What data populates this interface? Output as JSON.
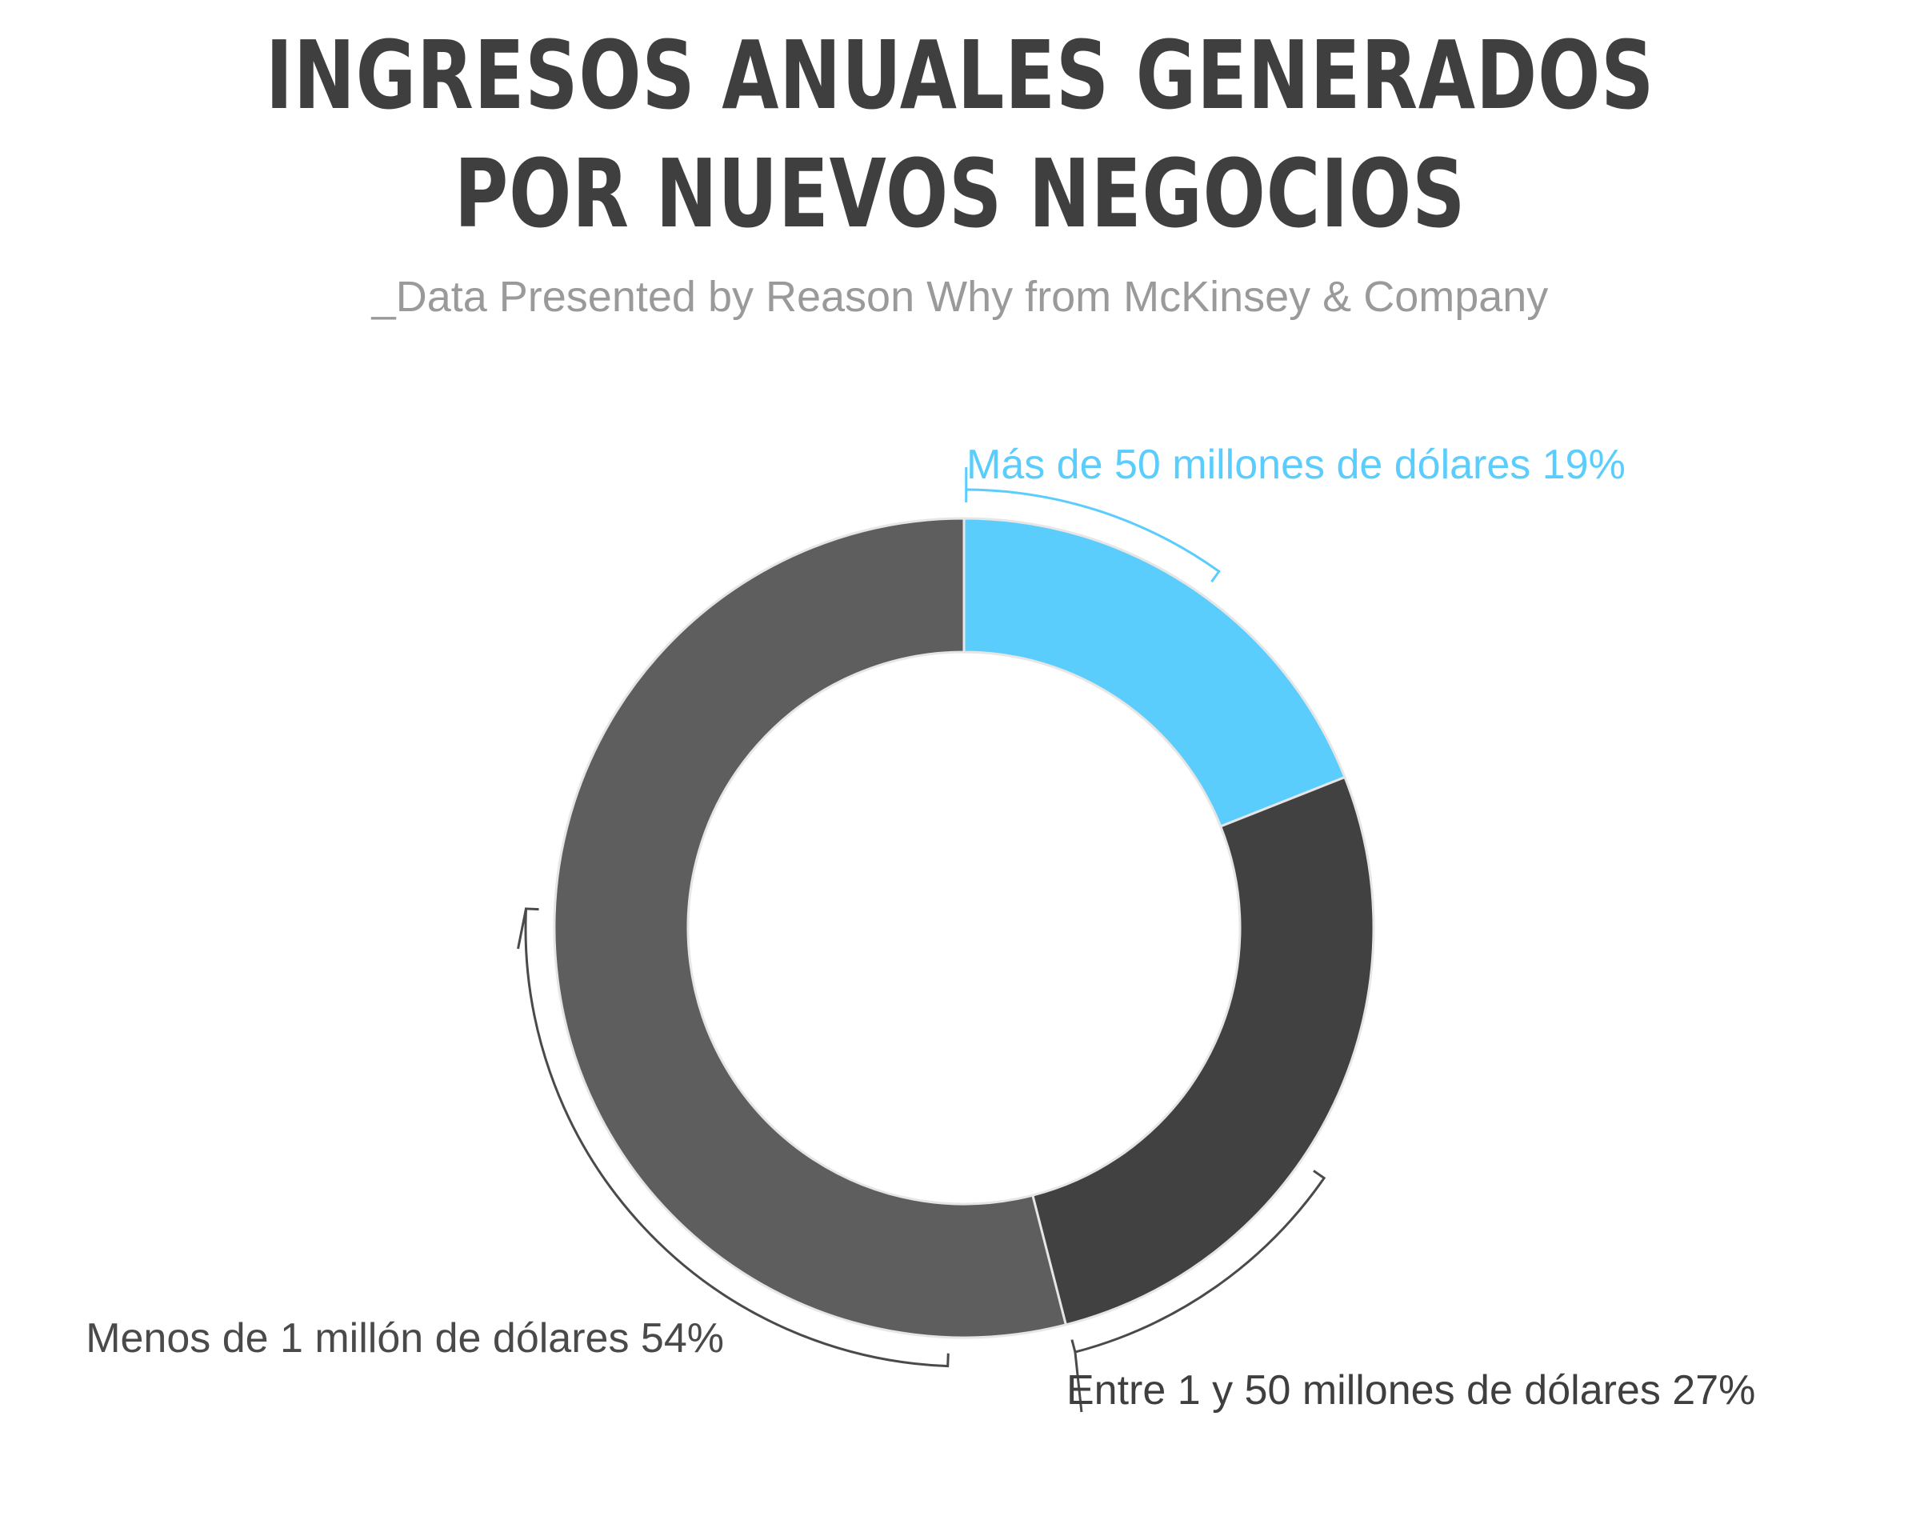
{
  "chart_data": {
    "type": "pie",
    "title": "INGRESOS ANUALES GENERADOS POR NUEVOS NEGOCIOS",
    "subtitle": "_Data Presented by Reason Why from McKinsey & Company",
    "donut": true,
    "slices": [
      {
        "label": "Más de 50 millones de dólares",
        "value": 19,
        "value_label": "19%",
        "color": "#5bcdfd"
      },
      {
        "label": "Entre 1 y 50 millones de dólares",
        "value": 27,
        "value_label": "27%",
        "color": "#414141"
      },
      {
        "label": "Menos de 1 millón de dólares",
        "value": 54,
        "value_label": "54%",
        "color": "#5e5e5e"
      }
    ]
  }
}
